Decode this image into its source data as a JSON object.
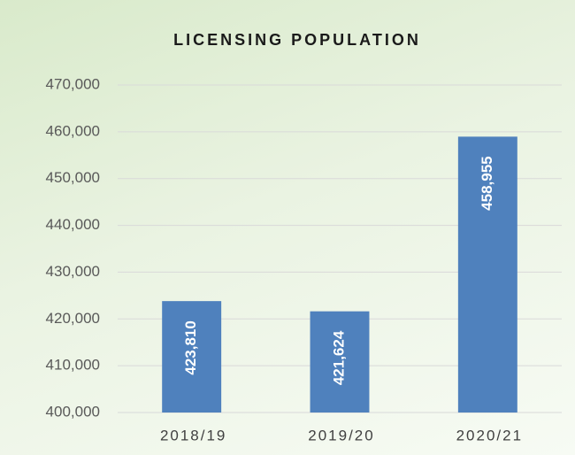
{
  "chart_data": {
    "type": "bar",
    "title": "LICENSING POPULATION",
    "categories": [
      "2018/19",
      "2019/20",
      "2020/21"
    ],
    "values": [
      423810,
      421624,
      458955
    ],
    "value_labels": [
      "423,810",
      "421,624",
      "458,955"
    ],
    "color": "#4f81bd",
    "ylim": [
      400000,
      470000
    ],
    "yticks": [
      {
        "value": 400000,
        "label": "400,000"
      },
      {
        "value": 410000,
        "label": "410,000"
      },
      {
        "value": 420000,
        "label": "420,000"
      },
      {
        "value": 430000,
        "label": "430,000"
      },
      {
        "value": 440000,
        "label": "440,000"
      },
      {
        "value": 450000,
        "label": "450,000"
      },
      {
        "value": 460000,
        "label": "460,000"
      },
      {
        "value": 470000,
        "label": "470,000"
      }
    ],
    "grid": true
  }
}
